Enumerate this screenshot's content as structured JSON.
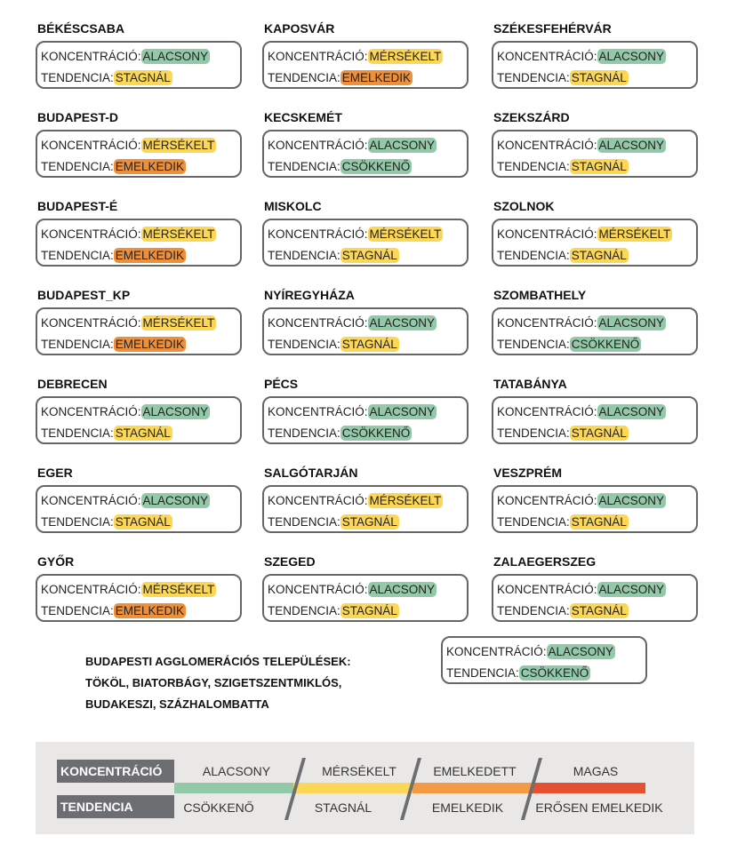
{
  "labels": {
    "concentration": "KONCENTRÁCIÓ:",
    "trend": "TENDENCIA:"
  },
  "colors": {
    "green": "#93c9a8",
    "yellow": "#fcd757",
    "orange": "#ee8f3c",
    "red": "#e55032"
  },
  "cities": [
    {
      "name": "BÉKÉSCSABA",
      "conc": "ALACSONY",
      "trend": "STAGNÁL"
    },
    {
      "name": "BUDAPEST-D",
      "conc": "MÉRSÉKELT",
      "trend": "EMELKEDIK"
    },
    {
      "name": "BUDAPEST-É",
      "conc": "MÉRSÉKELT",
      "trend": "EMELKEDIK"
    },
    {
      "name": "BUDAPEST_KP",
      "conc": "MÉRSÉKELT",
      "trend": "EMELKEDIK"
    },
    {
      "name": "DEBRECEN",
      "conc": "ALACSONY",
      "trend": "STAGNÁL"
    },
    {
      "name": "EGER",
      "conc": "ALACSONY",
      "trend": "STAGNÁL"
    },
    {
      "name": "GYŐR",
      "conc": "MÉRSÉKELT",
      "trend": "EMELKEDIK"
    },
    {
      "name": "KAPOSVÁR",
      "conc": "MÉRSÉKELT",
      "trend": "EMELKEDIK"
    },
    {
      "name": "KECSKEMÉT",
      "conc": "ALACSONY",
      "trend": "CSÖKKENŐ"
    },
    {
      "name": "MISKOLC",
      "conc": "MÉRSÉKELT",
      "trend": "STAGNÁL"
    },
    {
      "name": "NYÍREGYHÁZA",
      "conc": "ALACSONY",
      "trend": "STAGNÁL"
    },
    {
      "name": "PÉCS",
      "conc": "ALACSONY",
      "trend": "CSÖKKENŐ"
    },
    {
      "name": "SALGÓTARJÁN",
      "conc": "MÉRSÉKELT",
      "trend": "STAGNÁL"
    },
    {
      "name": "SZEGED",
      "conc": "ALACSONY",
      "trend": "STAGNÁL"
    },
    {
      "name": "SZÉKESFEHÉRVÁR",
      "conc": "ALACSONY",
      "trend": "STAGNÁL"
    },
    {
      "name": "SZEKSZÁRD",
      "conc": "ALACSONY",
      "trend": "STAGNÁL"
    },
    {
      "name": "SZOLNOK",
      "conc": "MÉRSÉKELT",
      "trend": "STAGNÁL"
    },
    {
      "name": "SZOMBATHELY",
      "conc": "ALACSONY",
      "trend": "CSÖKKENŐ"
    },
    {
      "name": "TATABÁNYA",
      "conc": "ALACSONY",
      "trend": "STAGNÁL"
    },
    {
      "name": "VESZPRÉM",
      "conc": "ALACSONY",
      "trend": "STAGNÁL"
    },
    {
      "name": "ZALAEGERSZEG",
      "conc": "ALACSONY",
      "trend": "STAGNÁL"
    }
  ],
  "agglomeration": {
    "lines": [
      "BUDAPESTI AGGLOMERÁCIÓS TELEPÜLÉSEK:",
      "TÖKÖL, BIATORBÁGY, SZIGETSZENTMIKLÓS,",
      "BUDAKESZI, SZÁZHALOMBATTA"
    ],
    "conc": "ALACSONY",
    "trend": "CSÖKKENŐ"
  },
  "legend": {
    "concentration_label": "KONCENTRÁCIÓ",
    "trend_label": "TENDENCIA",
    "concentration_levels": [
      "ALACSONY",
      "MÉRSÉKELT",
      "EMELKEDETT",
      "MAGAS"
    ],
    "trend_levels": [
      "CSÖKKENŐ",
      "STAGNÁL",
      "EMELKEDIK",
      "ERŐSEN EMELKEDIK"
    ]
  }
}
